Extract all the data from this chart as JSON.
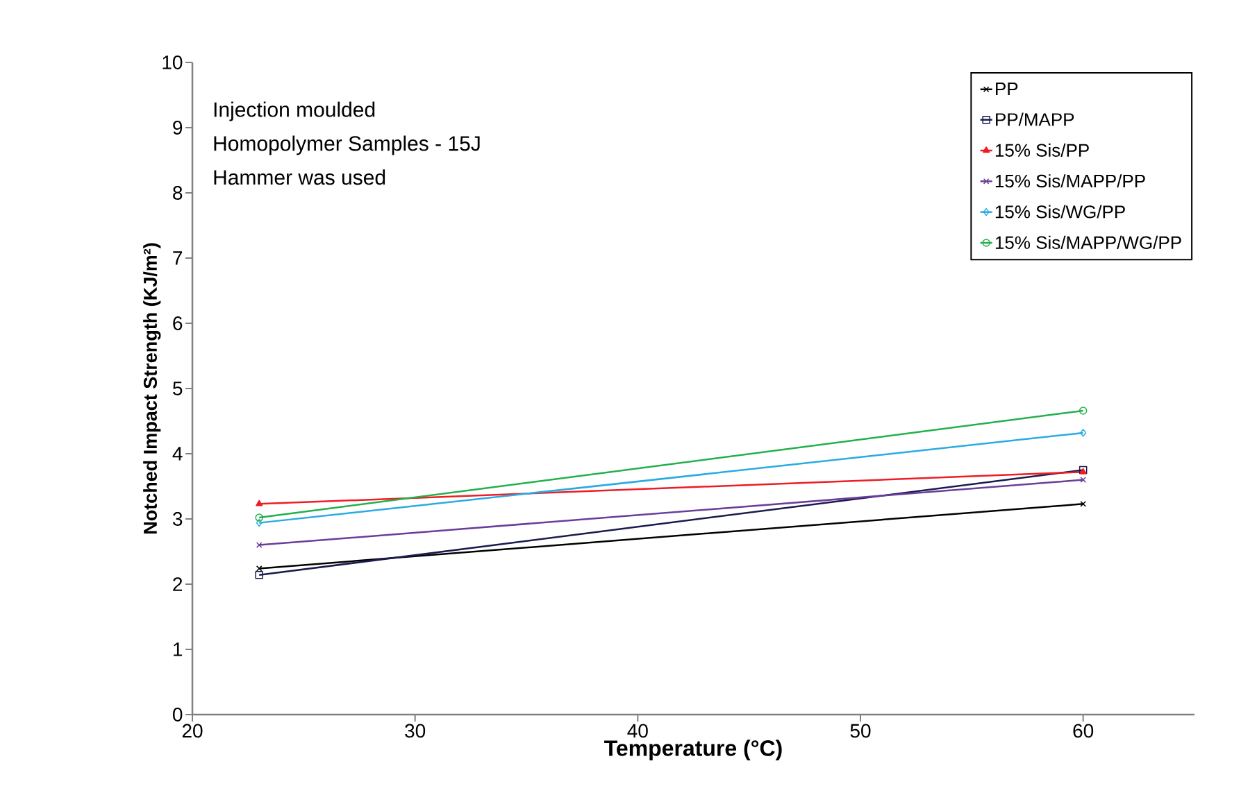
{
  "chart_data": {
    "type": "line",
    "xlabel": "Temperature (°C)",
    "ylabel": "Notched Impact Strength (KJ/m²)",
    "annotations": [
      "Injection moulded",
      "Homopolymer Samples - 15J",
      "Hammer was used"
    ],
    "x": [
      23,
      60
    ],
    "series": [
      {
        "name": "PP",
        "color": "#000000",
        "values": [
          2.24,
          3.23
        ],
        "marker": "cross"
      },
      {
        "name": "PP/MAPP",
        "color": "#1a1a4e",
        "values": [
          2.14,
          3.75
        ],
        "marker": "square"
      },
      {
        "name": "15% Sis/PP",
        "color": "#ee1c25",
        "values": [
          3.23,
          3.72
        ],
        "marker": "triangle"
      },
      {
        "name": "15% Sis/MAPP/PP",
        "color": "#6a3d9a",
        "values": [
          2.6,
          3.6
        ],
        "marker": "cross"
      },
      {
        "name": "15% Sis/WG/PP",
        "color": "#29abe2",
        "values": [
          2.94,
          4.32
        ],
        "marker": "diamond"
      },
      {
        "name": "15% Sis/MAPP/WG/PP",
        "color": "#22b04b",
        "values": [
          3.02,
          4.66
        ],
        "marker": "circle"
      }
    ],
    "xlim": [
      20,
      65
    ],
    "xticks": [
      20,
      30,
      40,
      50,
      60
    ],
    "ylim": [
      0,
      10
    ],
    "yticks": [
      0,
      1,
      2,
      3,
      4,
      5,
      6,
      7,
      8,
      9,
      10
    ],
    "grid": false,
    "legend": "top right"
  }
}
